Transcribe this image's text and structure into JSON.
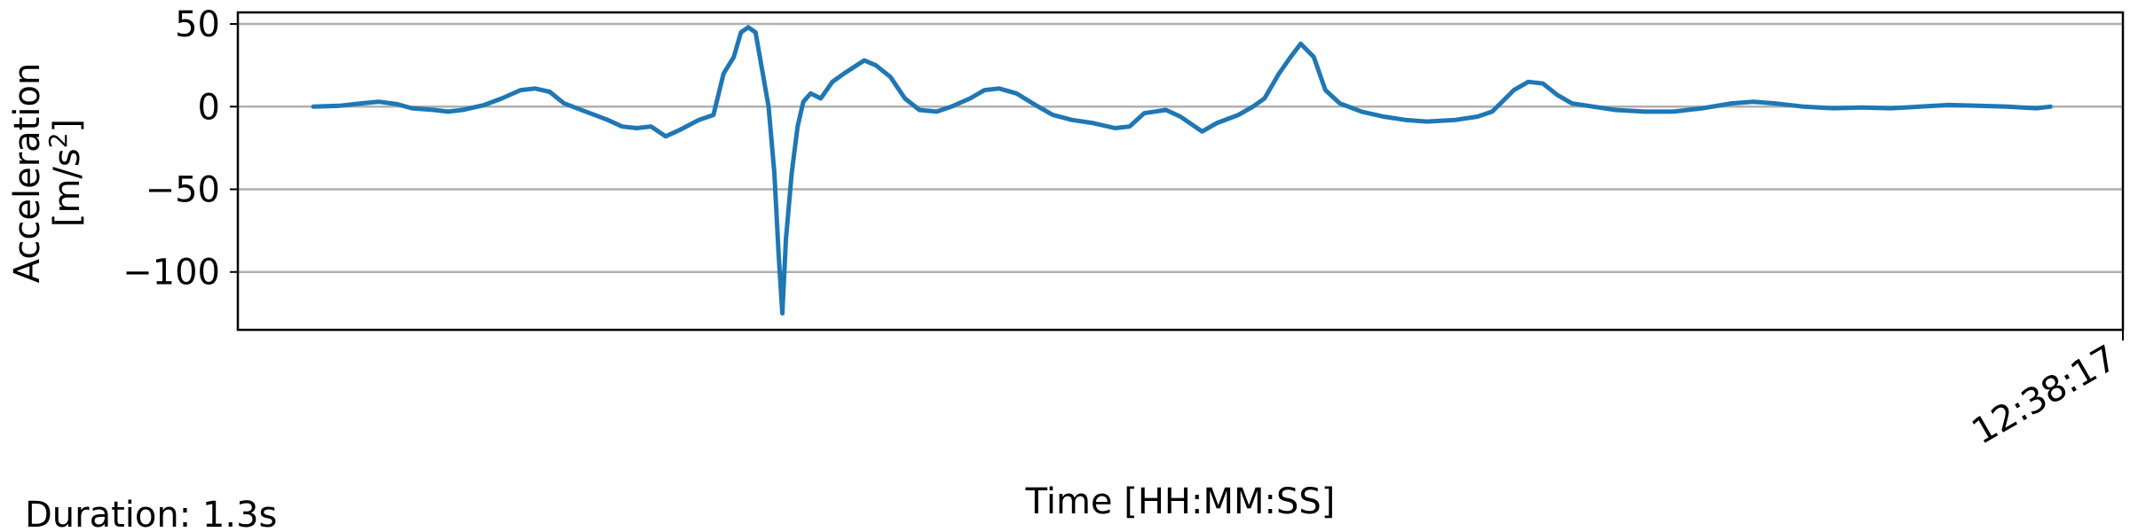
{
  "chart_data": {
    "type": "line",
    "xlabel": "Time [HH:MM:SS]",
    "ylabel_line1": "Acceleration",
    "ylabel_line2_prefix": "[m/s",
    "ylabel_line2_exponent": "2",
    "ylabel_line2_suffix": "]",
    "ylim": [
      -135,
      57
    ],
    "xlim": [
      0,
      1.3
    ],
    "yticks": [
      50,
      0,
      -50,
      -100
    ],
    "ytick_labels": [
      "50",
      "0",
      "−50",
      "−100"
    ],
    "xtick_labels": [
      "12:38:17"
    ],
    "grid": "horizontal",
    "footer": "Duration: 1.3s",
    "series": [
      {
        "color": "#1f77b4",
        "x_unit": "seconds",
        "points": [
          [
            0.052,
            0
          ],
          [
            0.07,
            0.5
          ],
          [
            0.085,
            2
          ],
          [
            0.097,
            3
          ],
          [
            0.11,
            1.5
          ],
          [
            0.12,
            -1
          ],
          [
            0.135,
            -2
          ],
          [
            0.145,
            -3
          ],
          [
            0.155,
            -2
          ],
          [
            0.17,
            1
          ],
          [
            0.182,
            5
          ],
          [
            0.195,
            10
          ],
          [
            0.205,
            11
          ],
          [
            0.215,
            9
          ],
          [
            0.225,
            2
          ],
          [
            0.24,
            -3
          ],
          [
            0.255,
            -8
          ],
          [
            0.265,
            -12
          ],
          [
            0.275,
            -13
          ],
          [
            0.285,
            -12
          ],
          [
            0.295,
            -18
          ],
          [
            0.305,
            -14
          ],
          [
            0.318,
            -8
          ],
          [
            0.328,
            -5
          ],
          [
            0.335,
            20
          ],
          [
            0.342,
            30
          ],
          [
            0.347,
            45
          ],
          [
            0.352,
            48
          ],
          [
            0.357,
            45
          ],
          [
            0.362,
            20
          ],
          [
            0.366,
            0
          ],
          [
            0.37,
            -40
          ],
          [
            0.373,
            -90
          ],
          [
            0.3755,
            -125
          ],
          [
            0.378,
            -80
          ],
          [
            0.382,
            -40
          ],
          [
            0.386,
            -12
          ],
          [
            0.39,
            3
          ],
          [
            0.395,
            8
          ],
          [
            0.402,
            5
          ],
          [
            0.41,
            15
          ],
          [
            0.418,
            20
          ],
          [
            0.425,
            24
          ],
          [
            0.432,
            28
          ],
          [
            0.44,
            25
          ],
          [
            0.45,
            18
          ],
          [
            0.46,
            5
          ],
          [
            0.47,
            -2
          ],
          [
            0.482,
            -3
          ],
          [
            0.492,
            0
          ],
          [
            0.505,
            5
          ],
          [
            0.515,
            10
          ],
          [
            0.525,
            11
          ],
          [
            0.537,
            8
          ],
          [
            0.55,
            1
          ],
          [
            0.562,
            -5
          ],
          [
            0.575,
            -8
          ],
          [
            0.59,
            -10
          ],
          [
            0.605,
            -13
          ],
          [
            0.615,
            -12
          ],
          [
            0.625,
            -4
          ],
          [
            0.64,
            -2
          ],
          [
            0.65,
            -6
          ],
          [
            0.66,
            -12
          ],
          [
            0.665,
            -15
          ],
          [
            0.675,
            -10
          ],
          [
            0.69,
            -5
          ],
          [
            0.7,
            0
          ],
          [
            0.708,
            5
          ],
          [
            0.718,
            20
          ],
          [
            0.726,
            30
          ],
          [
            0.733,
            38
          ],
          [
            0.742,
            30
          ],
          [
            0.75,
            10
          ],
          [
            0.76,
            2
          ],
          [
            0.775,
            -3
          ],
          [
            0.79,
            -6
          ],
          [
            0.805,
            -8
          ],
          [
            0.82,
            -9
          ],
          [
            0.84,
            -8
          ],
          [
            0.855,
            -6
          ],
          [
            0.865,
            -3
          ],
          [
            0.872,
            3
          ],
          [
            0.88,
            10
          ],
          [
            0.89,
            15
          ],
          [
            0.9,
            14
          ],
          [
            0.91,
            7
          ],
          [
            0.92,
            2
          ],
          [
            0.935,
            0
          ],
          [
            0.95,
            -2
          ],
          [
            0.97,
            -3
          ],
          [
            0.99,
            -3
          ],
          [
            1.01,
            -1
          ],
          [
            1.03,
            2
          ],
          [
            1.045,
            3
          ],
          [
            1.06,
            2
          ],
          [
            1.08,
            0
          ],
          [
            1.1,
            -1
          ],
          [
            1.12,
            -0.5
          ],
          [
            1.14,
            -1
          ],
          [
            1.16,
            0
          ],
          [
            1.18,
            1
          ],
          [
            1.2,
            0.5
          ],
          [
            1.22,
            0
          ],
          [
            1.24,
            -1
          ],
          [
            1.25,
            0
          ]
        ]
      }
    ]
  }
}
